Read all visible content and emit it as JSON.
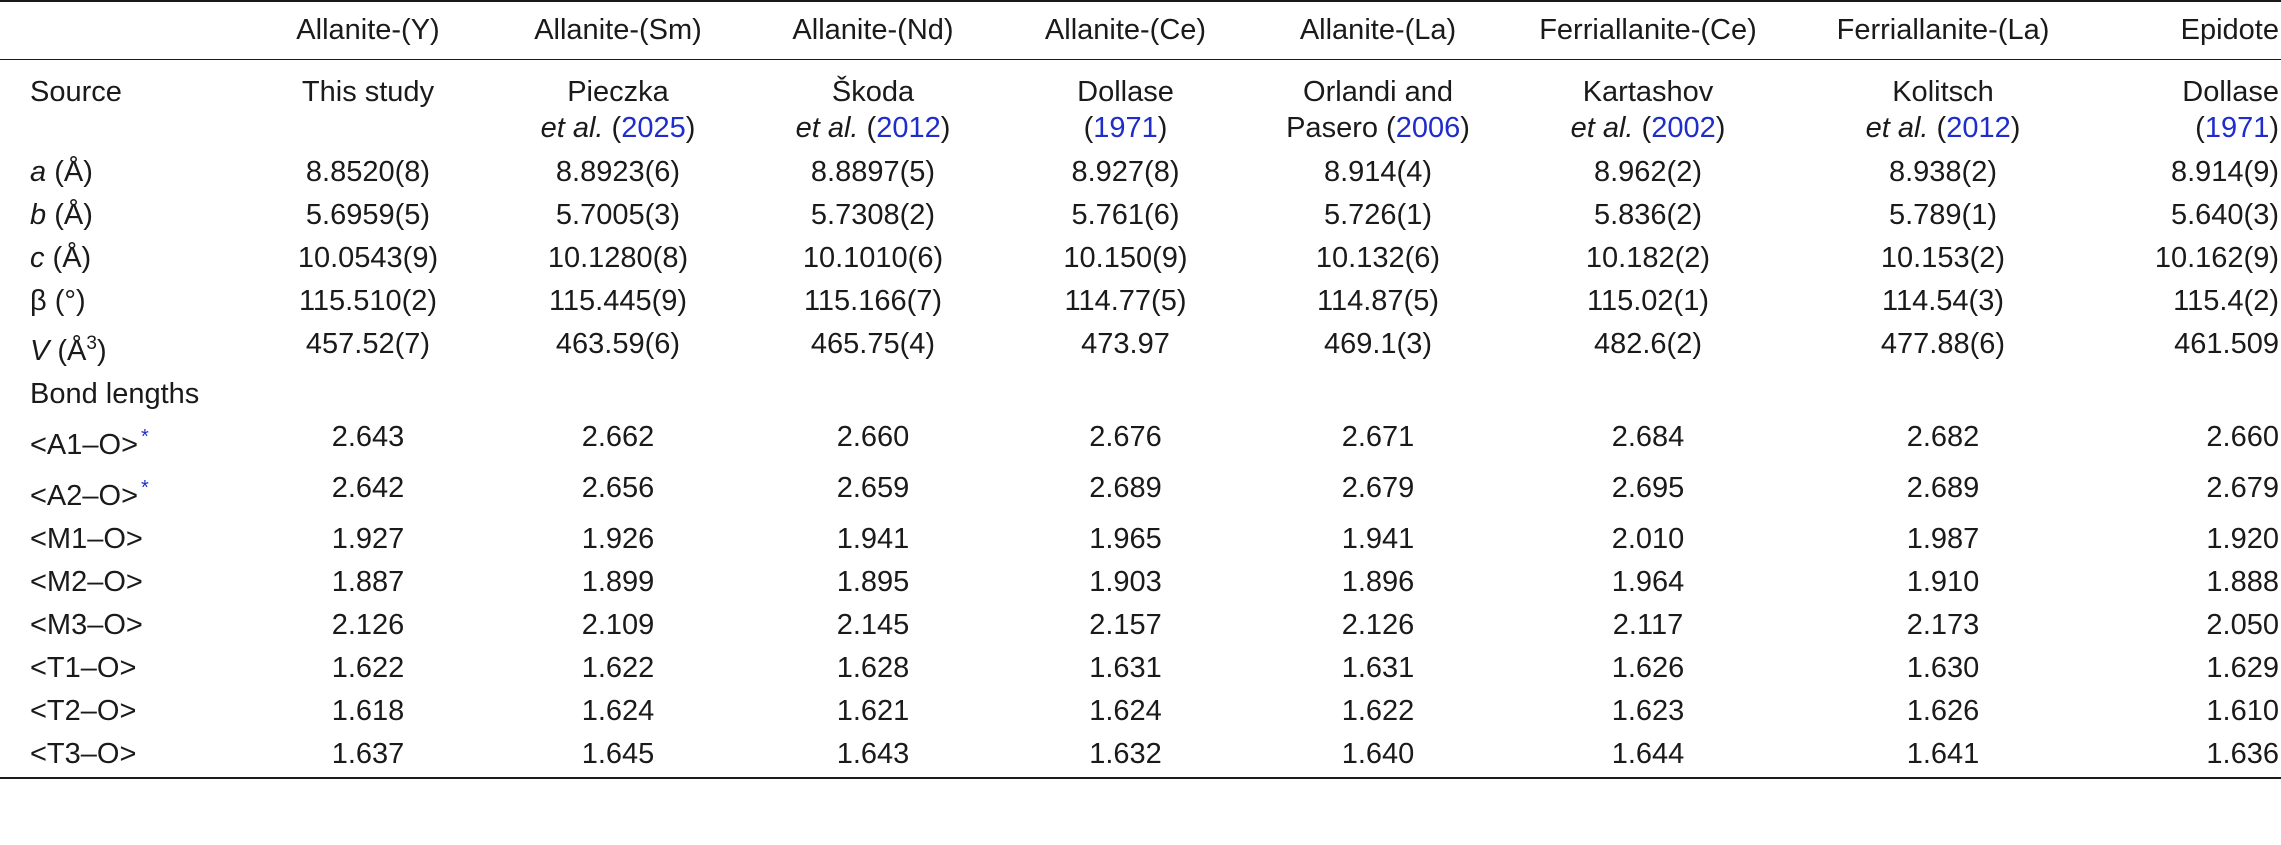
{
  "columns": [
    "Allanite-(Y)",
    "Allanite-(Sm)",
    "Allanite-(Nd)",
    "Allanite-(Ce)",
    "Allanite-(La)",
    "Ferriallanite-(Ce)",
    "Ferriallanite-(La)",
    "Epidote"
  ],
  "source_label": "Source",
  "sources": [
    {
      "line1": "This study",
      "author2": "",
      "etal": "",
      "open": "",
      "year": "",
      "close": ""
    },
    {
      "line1": "Pieczka",
      "author2": "",
      "etal": "et al.",
      "open": " (",
      "year": "2025",
      "close": ")"
    },
    {
      "line1": "Škoda",
      "author2": "",
      "etal": "et al.",
      "open": " (",
      "year": "2012",
      "close": ")"
    },
    {
      "line1": "Dollase",
      "author2": "",
      "etal": "",
      "open": "(",
      "year": "1971",
      "close": ")"
    },
    {
      "line1": "Orlandi and",
      "author2": "Pasero",
      "etal": "",
      "open": " (",
      "year": "2006",
      "close": ")"
    },
    {
      "line1": "Kartashov",
      "author2": "",
      "etal": "et al.",
      "open": " (",
      "year": "2002",
      "close": ")"
    },
    {
      "line1": "Kolitsch",
      "author2": "",
      "etal": "et al.",
      "open": " (",
      "year": "2012",
      "close": ")"
    },
    {
      "line1": "Dollase",
      "author2": "",
      "etal": "",
      "open": "(",
      "year": "1971",
      "close": ")"
    }
  ],
  "cell_params": [
    {
      "sym": "a",
      "unit": " (Å)",
      "sup": "",
      "unit_close": "",
      "values": [
        "8.8520(8)",
        "8.8923(6)",
        "8.8897(5)",
        "8.927(8)",
        "8.914(4)",
        "8.962(2)",
        "8.938(2)",
        "8.914(9)"
      ]
    },
    {
      "sym": "b",
      "unit": " (Å)",
      "sup": "",
      "unit_close": "",
      "values": [
        "5.6959(5)",
        "5.7005(3)",
        "5.7308(2)",
        "5.761(6)",
        "5.726(1)",
        "5.836(2)",
        "5.789(1)",
        "5.640(3)"
      ]
    },
    {
      "sym": "c",
      "unit": " (Å)",
      "sup": "",
      "unit_close": "",
      "values": [
        "10.0543(9)",
        "10.1280(8)",
        "10.1010(6)",
        "10.150(9)",
        "10.132(6)",
        "10.182(2)",
        "10.153(2)",
        "10.162(9)"
      ]
    },
    {
      "sym": "β",
      "unit": " (°)",
      "sup": "",
      "unit_close": "",
      "values": [
        "115.510(2)",
        "115.445(9)",
        "115.166(7)",
        "114.77(5)",
        "114.87(5)",
        "115.02(1)",
        "114.54(3)",
        "115.4(2)"
      ]
    },
    {
      "sym": "V",
      "unit": " (Å",
      "sup": "3",
      "unit_close": ")",
      "values": [
        "457.52(7)",
        "463.59(6)",
        "465.75(4)",
        "473.97",
        "469.1(3)",
        "482.6(2)",
        "477.88(6)",
        "461.509"
      ]
    }
  ],
  "bond_lengths_label": "Bond lengths",
  "bonds": [
    {
      "label": "<A1–O>",
      "star": "*",
      "values": [
        "2.643",
        "2.662",
        "2.660",
        "2.676",
        "2.671",
        "2.684",
        "2.682",
        "2.660"
      ]
    },
    {
      "label": "<A2–O>",
      "star": "*",
      "values": [
        "2.642",
        "2.656",
        "2.659",
        "2.689",
        "2.679",
        "2.695",
        "2.689",
        "2.679"
      ]
    },
    {
      "label": "<M1–O>",
      "star": "",
      "values": [
        "1.927",
        "1.926",
        "1.941",
        "1.965",
        "1.941",
        "2.010",
        "1.987",
        "1.920"
      ]
    },
    {
      "label": "<M2–O>",
      "star": "",
      "values": [
        "1.887",
        "1.899",
        "1.895",
        "1.903",
        "1.896",
        "1.964",
        "1.910",
        "1.888"
      ]
    },
    {
      "label": "<M3–O>",
      "star": "",
      "values": [
        "2.126",
        "2.109",
        "2.145",
        "2.157",
        "2.126",
        "2.117",
        "2.173",
        "2.050"
      ]
    },
    {
      "label": "<T1–O>",
      "star": "",
      "values": [
        "1.622",
        "1.622",
        "1.628",
        "1.631",
        "1.631",
        "1.626",
        "1.630",
        "1.629"
      ]
    },
    {
      "label": "<T2–O>",
      "star": "",
      "values": [
        "1.618",
        "1.624",
        "1.621",
        "1.624",
        "1.622",
        "1.623",
        "1.626",
        "1.610"
      ]
    },
    {
      "label": "<T3–O>",
      "star": "",
      "values": [
        "1.637",
        "1.645",
        "1.643",
        "1.632",
        "1.640",
        "1.644",
        "1.641",
        "1.636"
      ]
    }
  ]
}
